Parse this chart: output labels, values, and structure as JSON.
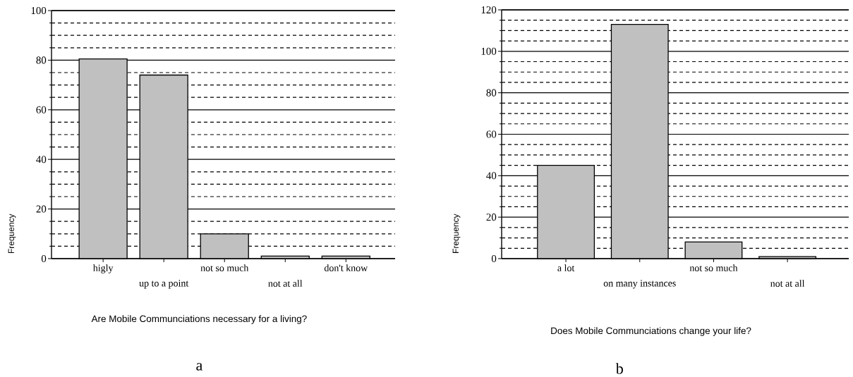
{
  "chart_data": [
    {
      "type": "bar",
      "title": "Are Mobile Communciations necessary for a living?",
      "ylabel": "Frequency",
      "categories": [
        "higly",
        "up to a point",
        "not so much",
        "not at all",
        "don't know"
      ],
      "values": [
        80.5,
        74,
        10,
        1,
        1
      ],
      "color": "#c0c0c0",
      "ylim": [
        0,
        100
      ],
      "yticks": [
        0,
        20,
        40,
        60,
        80,
        100
      ],
      "grid": "y",
      "annotations": [
        "a"
      ]
    },
    {
      "type": "bar",
      "title": "Does Mobile Communciations change your life?",
      "ylabel": "Frequency",
      "categories": [
        "a lot",
        "on many instances",
        "not so much",
        "not at all"
      ],
      "values": [
        45,
        113,
        8,
        1
      ],
      "color": "#c0c0c0",
      "ylim": [
        0,
        120
      ],
      "yticks": [
        0,
        20,
        40,
        60,
        80,
        100,
        120
      ],
      "grid": "y",
      "annotations": [
        "b"
      ]
    }
  ]
}
